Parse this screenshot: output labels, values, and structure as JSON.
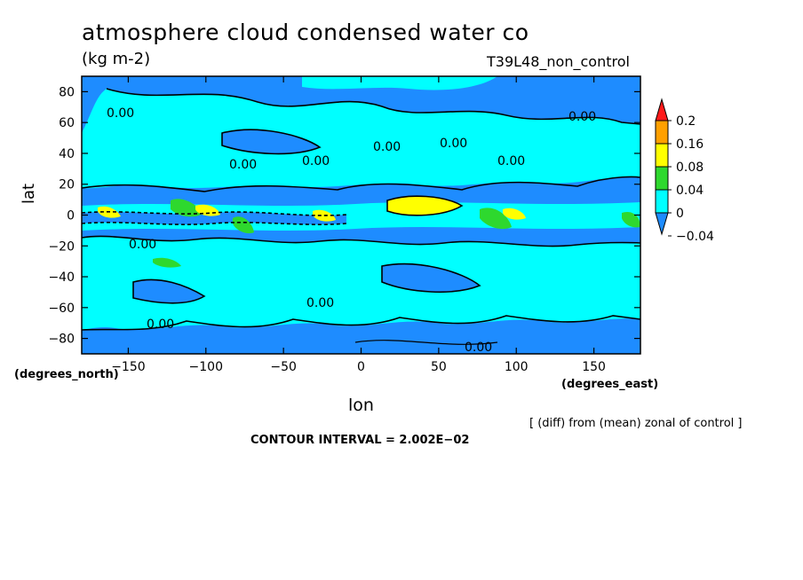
{
  "chart_data": {
    "type": "heatmap",
    "title": "atmosphere cloud condensed water co",
    "units": "(kg m-2)",
    "run_label": "T39L48_non_control",
    "xlabel": "lon",
    "ylabel": "lat",
    "x_unit_label": "(degrees_east)",
    "y_unit_label": "(degrees_north)",
    "xlim": [
      -180,
      180
    ],
    "ylim": [
      -90,
      90
    ],
    "x_ticks": [
      -150,
      -100,
      -50,
      0,
      50,
      100,
      150
    ],
    "x_tick_labels": [
      "−150",
      "−100",
      "−50",
      "0",
      "50",
      "100",
      "150"
    ],
    "y_ticks": [
      80,
      60,
      40,
      20,
      0,
      -20,
      -40,
      -60,
      -80
    ],
    "y_tick_labels": [
      "80",
      "60",
      "40",
      "20",
      "0",
      "−20",
      "−40",
      "−60",
      "−80"
    ],
    "colorbar": {
      "levels": [
        -0.04,
        0,
        0.04,
        0.08,
        0.16,
        0.2
      ],
      "labels": [
        "−0.04",
        "0",
        "0.04",
        "0.08",
        "0.16",
        "0.2"
      ],
      "colors": [
        "#1e8cff",
        "#00ffff",
        "#2ed82e",
        "#ffff00",
        "#ffa000",
        "#ff1a1a"
      ]
    },
    "contour_labels": [
      "0.00",
      "0.00",
      "0.00",
      "0.00",
      "0.00",
      "0.00",
      "0.00",
      "0.00",
      "0.00",
      "0.00",
      "0.00"
    ],
    "subtitle_note": "[ (diff) from (mean) zonal of control ]",
    "contour_interval": "CONTOUR INTERVAL = 2.002E−02"
  }
}
